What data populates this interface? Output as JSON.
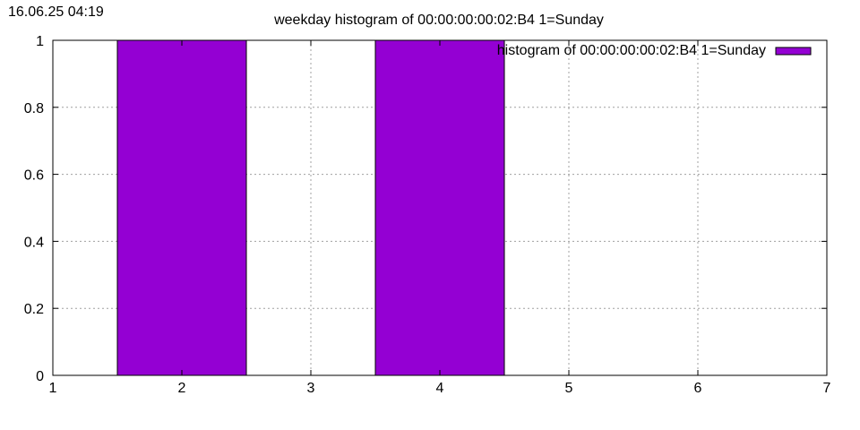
{
  "timestamp": "16.06.25 04:19",
  "chart_data": {
    "type": "bar",
    "title": "weekday histogram of 00:00:00:00:02:B4 1=Sunday",
    "xlabel": "",
    "ylabel": "",
    "xlim": [
      1,
      7
    ],
    "ylim": [
      0,
      1
    ],
    "x_ticks": [
      1,
      2,
      3,
      4,
      5,
      6,
      7
    ],
    "y_ticks": [
      0,
      0.2,
      0.4,
      0.6,
      0.8,
      1
    ],
    "grid": true,
    "legend_position": "top-right",
    "bar_width": 1,
    "series": [
      {
        "name": "histogram of 00:00:00:00:02:B4 1=Sunday",
        "color": "#9400d3",
        "x": [
          2,
          4
        ],
        "values": [
          1,
          1
        ]
      }
    ]
  }
}
